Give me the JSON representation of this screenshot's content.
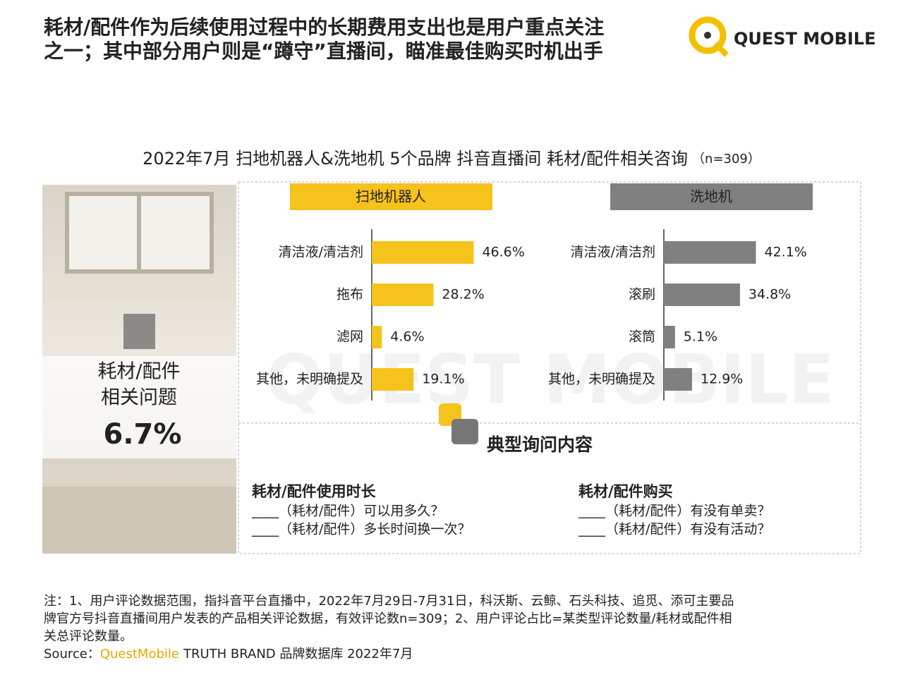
{
  "header": {
    "title": [
      "耗材/配件作为后续使用过程中的长期费用支出也是用户重点关注",
      "之一；其中部分用户则是“蹲守”直播间，瞄准最佳购买时机出手"
    ],
    "logo": "QUEST MOBILE"
  },
  "chart_title": "2022年7月 扫地机器人&洗地机 5个品牌 抖音直播间 耗材/配件相关咨询",
  "chart_note": "（n=309）",
  "watermark": "QUEST MOBILE",
  "side_panel": {
    "label": [
      "耗材/配件",
      "相关问题"
    ],
    "value": "6.7%"
  },
  "chart_data": [
    {
      "type": "bar",
      "orientation": "horizontal",
      "title": "扫地机器人",
      "color": "#f6c21c",
      "categories": [
        "清洁液/清洁剂",
        "拖布",
        "滤网",
        "其他，未明确提及"
      ],
      "values": [
        46.6,
        28.2,
        4.6,
        19.1
      ],
      "value_labels": [
        "46.6%",
        "28.2%",
        "4.6%",
        "19.1%"
      ]
    },
    {
      "type": "bar",
      "orientation": "horizontal",
      "title": "洗地机",
      "color": "#808080",
      "categories": [
        "清洁液/清洁剂",
        "滚刷",
        "滚筒",
        "其他，未明确提及"
      ],
      "values": [
        42.1,
        34.8,
        5.1,
        12.9
      ],
      "value_labels": [
        "42.1%",
        "34.8%",
        "5.1%",
        "12.9%"
      ]
    }
  ],
  "questions": {
    "title": "典型询问内容",
    "groups": [
      {
        "heading": "耗材/配件使用时长",
        "items": [
          "____（耗材/配件）可以用多久？",
          "____（耗材/配件）多长时间换一次？"
        ]
      },
      {
        "heading": "耗材/配件购买",
        "items": [
          "____（耗材/配件）有没有单卖？",
          "____（耗材/配件）有没有活动？"
        ]
      }
    ]
  },
  "footnote": [
    "注：1、用户评论数据范围，指抖音平台直播中，2022年7月29日-7月31日，科沃斯、云鲸、石头科技、追觅、添可主要品",
    "牌官方号抖音直播间用户发表的产品相关评论数据，有效评论数n=309；2、用户评论占比=某类型评论数量/耗材或配件相",
    "关总评论数量。"
  ],
  "source": {
    "label": "Source：",
    "brand": "QuestMobile",
    "text": "TRUTH BRAND 品牌数据库 2022年7月"
  }
}
